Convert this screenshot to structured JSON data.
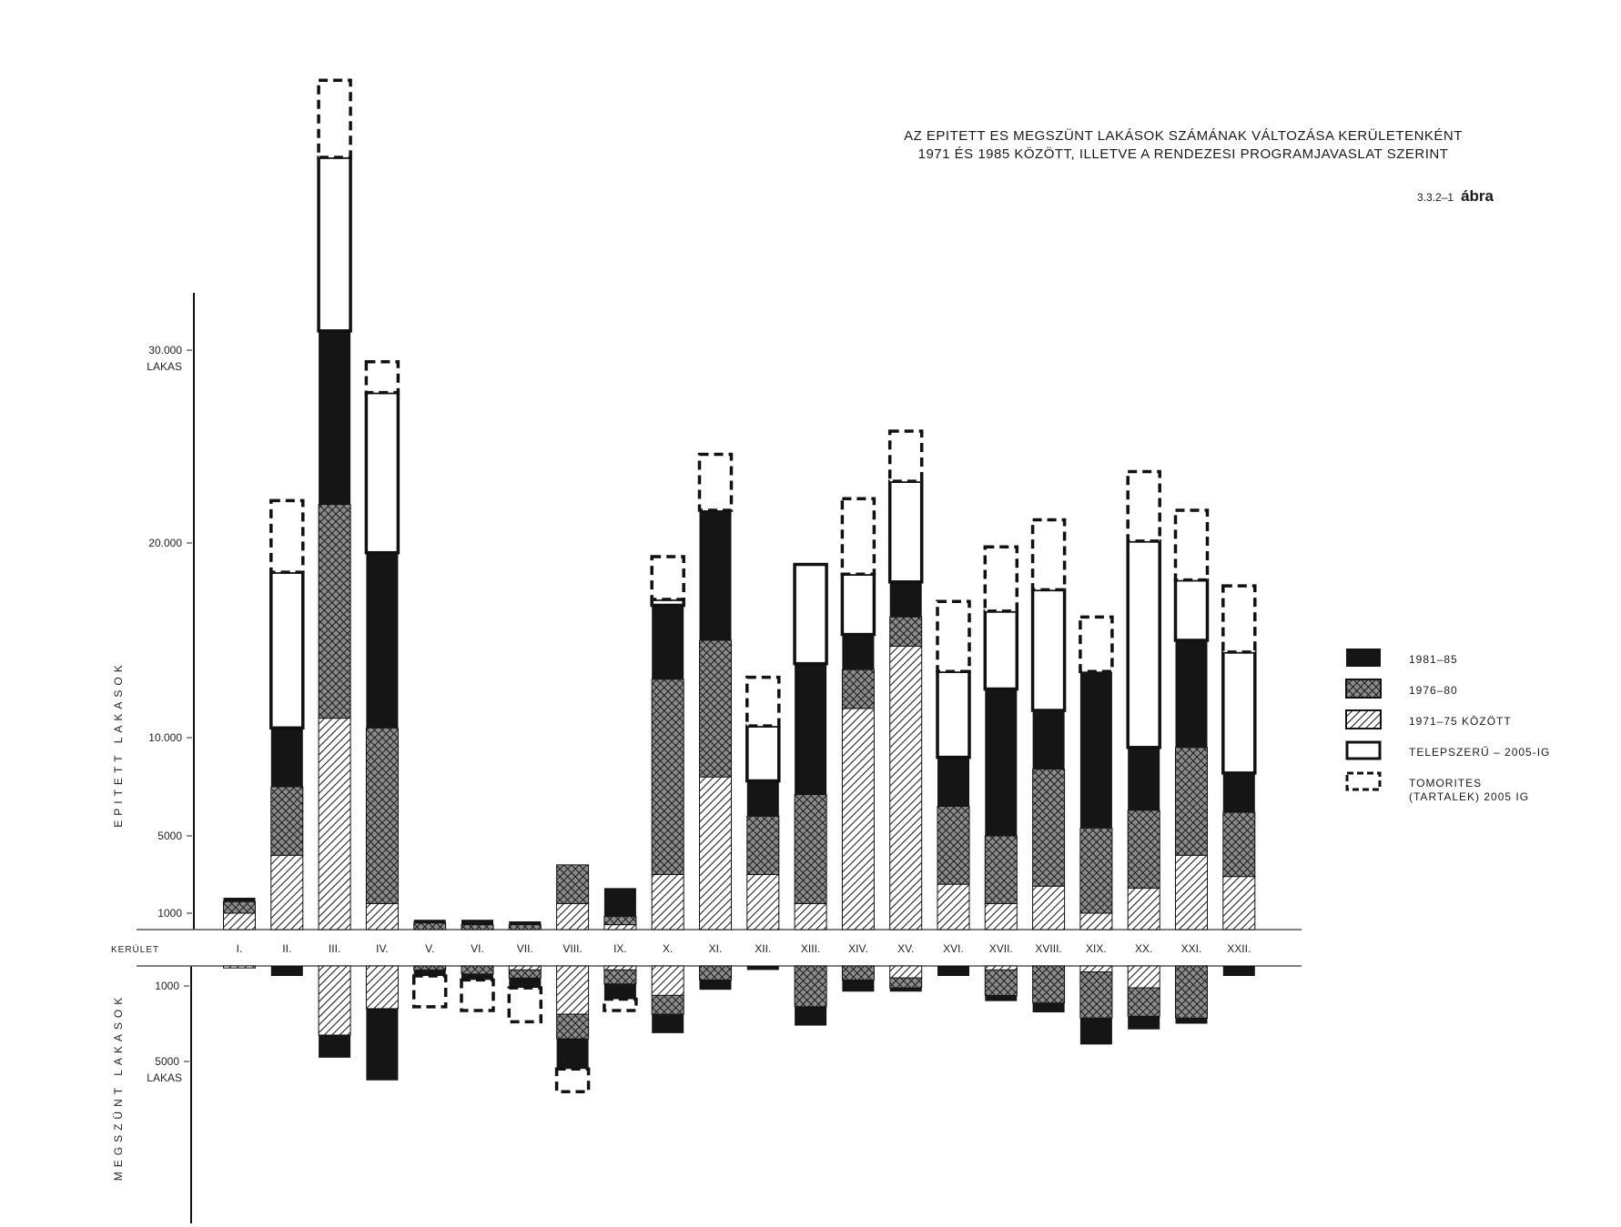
{
  "title_line1": "AZ EPITETT ES MEGSZÜNT LAKÁSOK SZÁMÁNAK VÁLTOZÁSA KERÜLETENKÉNT",
  "title_line2": "1971 ÉS 1985 KÖZÖTT, ILLETVE A RENDEZESI PROGRAMJAVASLAT SZERINT",
  "figure_number": "3.3.2–1",
  "figure_word": "ábra",
  "chart_data": {
    "type": "bar",
    "stacked": true,
    "district_row_label": "KERÜLET",
    "categories": [
      "I.",
      "II.",
      "III.",
      "IV.",
      "V.",
      "VI.",
      "VII.",
      "VIII.",
      "IX.",
      "X.",
      "XI.",
      "XII.",
      "XIII.",
      "XIV.",
      "XV.",
      "XVI.",
      "XVII.",
      "XVIII.",
      "XIX.",
      "XX.",
      "XXI.",
      "XXII."
    ],
    "upper_axis": {
      "label": "EPITETT LAKASOK",
      "ticks": [
        {
          "value": 1000,
          "label": "1000"
        },
        {
          "value": 5000,
          "label": "5000"
        },
        {
          "value": 10000,
          "label": "10.000"
        },
        {
          "value": 20000,
          "label": "20.000"
        },
        {
          "value": 30000,
          "label": "30.000"
        }
      ],
      "unit_label": "LAKAS"
    },
    "lower_axis": {
      "label": "MEGSZÜNT LAKASOK",
      "ticks": [
        {
          "value": 1000,
          "label": "1000"
        },
        {
          "value": 5000,
          "label": "5000"
        }
      ],
      "unit_label": "LAKAS"
    },
    "series": [
      {
        "name": "1971–75 KÖZÖTT",
        "pattern": "diagonal-hatch",
        "built": [
          1000,
          4000,
          11000,
          1500,
          0,
          0,
          0,
          1500,
          300,
          3000,
          8000,
          3000,
          1500,
          11500,
          14700,
          2500,
          1500,
          2400,
          1000,
          2300,
          4000,
          2900
        ],
        "demolished": [
          100,
          0,
          3600,
          2200,
          0,
          0,
          200,
          2500,
          200,
          1500,
          0,
          0,
          0,
          0,
          600,
          0,
          200,
          0,
          300,
          1100,
          0,
          0
        ]
      },
      {
        "name": "1976–80",
        "pattern": "cross-hatch",
        "built": [
          600,
          3500,
          11000,
          9000,
          400,
          300,
          300,
          2000,
          500,
          10000,
          7000,
          3000,
          5600,
          2000,
          1500,
          4000,
          3500,
          6000,
          4400,
          4000,
          5500,
          3300
        ],
        "demolished": [
          0,
          0,
          0,
          0,
          200,
          400,
          400,
          1300,
          700,
          1000,
          700,
          0,
          2100,
          700,
          500,
          0,
          1300,
          1900,
          2400,
          1500,
          2700,
          0
        ]
      },
      {
        "name": "1981–85",
        "pattern": "solid",
        "built": [
          200,
          3000,
          9000,
          9000,
          200,
          300,
          200,
          0,
          1500,
          3800,
          6700,
          1800,
          6700,
          1800,
          1800,
          2500,
          7500,
          3000,
          8000,
          3200,
          5500,
          2000
        ],
        "demolished": [
          0,
          500,
          1200,
          3800,
          300,
          300,
          500,
          1600,
          800,
          1000,
          500,
          200,
          1000,
          600,
          200,
          500,
          300,
          500,
          1400,
          700,
          300,
          500
        ]
      },
      {
        "name": "TELEPSZERŰ – 2005-IG",
        "pattern": "outline",
        "built": [
          0,
          8000,
          9000,
          8300,
          0,
          0,
          0,
          0,
          0,
          300,
          0,
          2800,
          5100,
          3100,
          5200,
          4400,
          4000,
          6200,
          0,
          10600,
          3100,
          6200
        ],
        "demolished": [
          0,
          0,
          0,
          0,
          0,
          0,
          0,
          0,
          0,
          0,
          0,
          0,
          0,
          0,
          0,
          0,
          0,
          0,
          0,
          0,
          0,
          0
        ]
      },
      {
        "name": "TOMORITES (TARTALEK) 2005 IG",
        "pattern": "dashed-outline",
        "built": [
          0,
          3700,
          4000,
          1600,
          0,
          0,
          0,
          0,
          0,
          2200,
          2900,
          2500,
          0,
          3900,
          2600,
          3600,
          3300,
          3600,
          2800,
          3600,
          3600,
          3400
        ],
        "demolished": [
          0,
          0,
          0,
          0,
          1600,
          1600,
          1800,
          1200,
          600,
          0,
          0,
          0,
          0,
          0,
          0,
          0,
          0,
          0,
          0,
          0,
          0,
          0
        ]
      }
    ]
  }
}
